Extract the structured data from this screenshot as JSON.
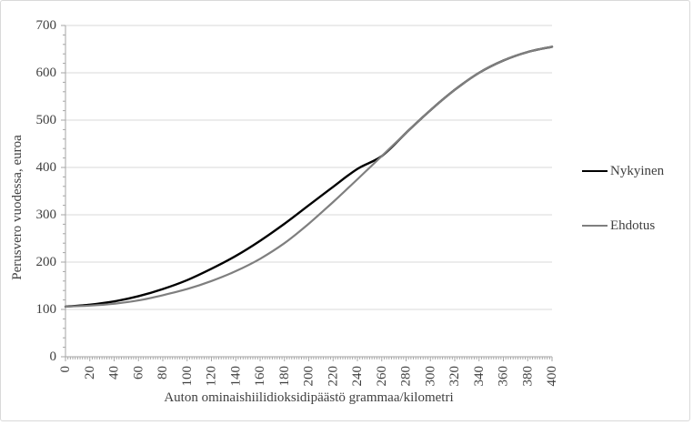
{
  "window": {
    "background": "#ffffff",
    "border_color": "#d9d9d9"
  },
  "chart_data": {
    "type": "line",
    "title": "",
    "ylabel": "Perusvero vuodessa, euroa",
    "xlabel": "Auton ominaishiilidioksidipäästö  grammaa/kilometri",
    "xlim": [
      0,
      400
    ],
    "ylim": [
      0,
      700
    ],
    "x_major_tick": 20,
    "x_minor_tick": 2,
    "y_major_tick": 100,
    "y_minor_tick": 20,
    "grid": "horizontal-major-only",
    "legend_position": "right-outside",
    "axis_color": "#a6a6a6",
    "grid_color": "#d9d9d9",
    "label_color": "#404040",
    "x": [
      0,
      20,
      40,
      60,
      80,
      100,
      120,
      140,
      160,
      180,
      200,
      220,
      240,
      260,
      280,
      300,
      320,
      340,
      360,
      380,
      400
    ],
    "series": [
      {
        "name": "Nykyinen",
        "color": "#000000",
        "line_width": 2.4,
        "values": [
          106,
          110,
          117,
          128,
          143,
          162,
          186,
          213,
          245,
          281,
          320,
          359,
          397,
          424,
          473,
          521,
          564,
          600,
          626,
          644,
          655
        ]
      },
      {
        "name": "Ehdotus",
        "color": "#7f7f7f",
        "line_width": 2.2,
        "values": [
          106,
          108,
          112,
          119,
          130,
          143,
          160,
          181,
          207,
          240,
          281,
          327,
          375,
          424,
          473,
          521,
          564,
          600,
          626,
          644,
          655
        ]
      }
    ],
    "y_tick_labels": [
      "0",
      "100",
      "200",
      "300",
      "400",
      "500",
      "600",
      "700"
    ],
    "x_tick_labels": [
      "0",
      "20",
      "40",
      "60",
      "80",
      "100",
      "120",
      "140",
      "160",
      "180",
      "200",
      "220",
      "240",
      "260",
      "280",
      "300",
      "320",
      "340",
      "360",
      "380",
      "400"
    ]
  }
}
